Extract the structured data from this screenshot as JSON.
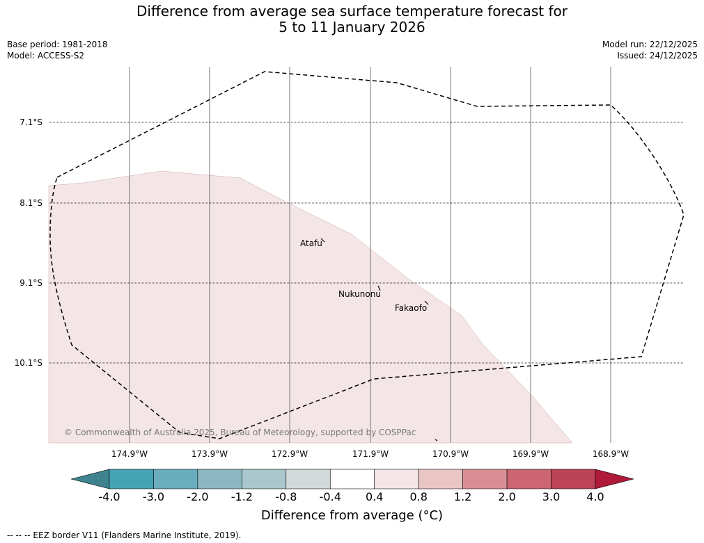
{
  "title": {
    "line1": "Difference from average sea surface temperature forecast for",
    "line2": "5 to 11 January 2026"
  },
  "meta": {
    "base_period": "Base period: 1981-2018",
    "model": "Model: ACCESS-S2",
    "model_run": "Model run: 22/12/2025",
    "issued": "Issued: 24/12/2025"
  },
  "map": {
    "latitude_labels": [
      "7.1°S",
      "8.1°S",
      "9.1°S",
      "10.1°S"
    ],
    "longitude_labels": [
      "174.9°W",
      "173.9°W",
      "172.9°W",
      "171.9°W",
      "170.9°W",
      "169.9°W",
      "168.9°W"
    ],
    "places": [
      "Atafu",
      "Nukunonu",
      "Fakaofo"
    ],
    "copyright": "© Commonwealth of Australia 2025, Bureau of Meteorology, supported by COSPPac",
    "anomaly_fill_color": "#f4e6e6"
  },
  "colorbar": {
    "label": "Difference from average (°C)",
    "ticks": [
      "-4.0",
      "-3.0",
      "-2.0",
      "-1.2",
      "-0.8",
      "-0.4",
      "0.4",
      "0.8",
      "1.2",
      "2.0",
      "3.0",
      "4.0"
    ],
    "colors": [
      "#3e838e",
      "#46a3b4",
      "#6aadbd",
      "#8bb8c3",
      "#a9c7cc",
      "#d2d9d9",
      "#ffffff",
      "#f4e6e6",
      "#e9c6c4",
      "#d98e96",
      "#cb6672",
      "#bd4456",
      "#b01a3a"
    ]
  },
  "footer": "--  --  -- EEZ border V11 (Flanders Marine Institute, 2019)."
}
